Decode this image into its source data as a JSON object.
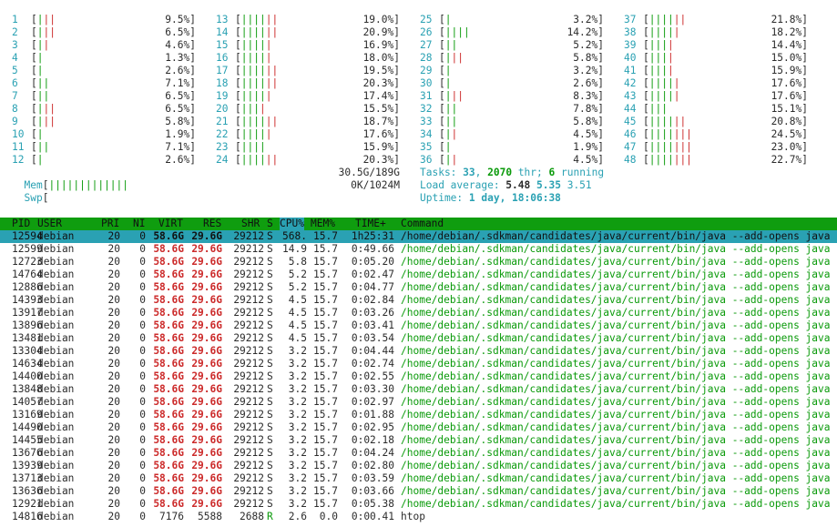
{
  "cpus": [
    {
      "id": "1",
      "pct": "9.5%",
      "g": 1,
      "r": 2
    },
    {
      "id": "2",
      "pct": "6.5%",
      "g": 1,
      "r": 2
    },
    {
      "id": "3",
      "pct": "4.6%",
      "g": 1,
      "r": 1
    },
    {
      "id": "4",
      "pct": "1.3%",
      "g": 1,
      "r": 0
    },
    {
      "id": "5",
      "pct": "2.6%",
      "g": 1,
      "r": 0
    },
    {
      "id": "6",
      "pct": "7.1%",
      "g": 2,
      "r": 0
    },
    {
      "id": "7",
      "pct": "6.5%",
      "g": 2,
      "r": 0
    },
    {
      "id": "8",
      "pct": "6.5%",
      "g": 1,
      "r": 2
    },
    {
      "id": "9",
      "pct": "5.8%",
      "g": 1,
      "r": 2
    },
    {
      "id": "10",
      "pct": "1.9%",
      "g": 1,
      "r": 0
    },
    {
      "id": "11",
      "pct": "7.1%",
      "g": 2,
      "r": 0
    },
    {
      "id": "12",
      "pct": "2.6%",
      "g": 1,
      "r": 0
    },
    {
      "id": "13",
      "pct": "19.0%",
      "g": 4,
      "r": 2
    },
    {
      "id": "14",
      "pct": "20.9%",
      "g": 4,
      "r": 2
    },
    {
      "id": "15",
      "pct": "16.9%",
      "g": 4,
      "r": 1
    },
    {
      "id": "16",
      "pct": "18.0%",
      "g": 4,
      "r": 1
    },
    {
      "id": "17",
      "pct": "19.5%",
      "g": 4,
      "r": 2
    },
    {
      "id": "18",
      "pct": "20.3%",
      "g": 4,
      "r": 2
    },
    {
      "id": "19",
      "pct": "17.4%",
      "g": 4,
      "r": 1
    },
    {
      "id": "20",
      "pct": "15.5%",
      "g": 3,
      "r": 1
    },
    {
      "id": "21",
      "pct": "18.7%",
      "g": 4,
      "r": 2
    },
    {
      "id": "22",
      "pct": "17.6%",
      "g": 4,
      "r": 1
    },
    {
      "id": "23",
      "pct": "15.9%",
      "g": 4,
      "r": 0
    },
    {
      "id": "24",
      "pct": "20.3%",
      "g": 4,
      "r": 2
    },
    {
      "id": "25",
      "pct": "3.2%",
      "g": 1,
      "r": 0
    },
    {
      "id": "26",
      "pct": "14.2%",
      "g": 4,
      "r": 0
    },
    {
      "id": "27",
      "pct": "5.2%",
      "g": 2,
      "r": 0
    },
    {
      "id": "28",
      "pct": "5.8%",
      "g": 1,
      "r": 2
    },
    {
      "id": "29",
      "pct": "3.2%",
      "g": 1,
      "r": 0
    },
    {
      "id": "30",
      "pct": "2.6%",
      "g": 1,
      "r": 0
    },
    {
      "id": "31",
      "pct": "8.3%",
      "g": 1,
      "r": 2
    },
    {
      "id": "32",
      "pct": "7.8%",
      "g": 2,
      "r": 0
    },
    {
      "id": "33",
      "pct": "5.8%",
      "g": 2,
      "r": 0
    },
    {
      "id": "34",
      "pct": "4.5%",
      "g": 1,
      "r": 1
    },
    {
      "id": "35",
      "pct": "1.9%",
      "g": 1,
      "r": 0
    },
    {
      "id": "36",
      "pct": "4.5%",
      "g": 1,
      "r": 1
    },
    {
      "id": "37",
      "pct": "21.8%",
      "g": 4,
      "r": 2
    },
    {
      "id": "38",
      "pct": "18.2%",
      "g": 4,
      "r": 1
    },
    {
      "id": "39",
      "pct": "14.4%",
      "g": 3,
      "r": 1
    },
    {
      "id": "40",
      "pct": "15.0%",
      "g": 3,
      "r": 1
    },
    {
      "id": "41",
      "pct": "15.9%",
      "g": 3,
      "r": 1
    },
    {
      "id": "42",
      "pct": "17.6%",
      "g": 4,
      "r": 1
    },
    {
      "id": "43",
      "pct": "17.6%",
      "g": 4,
      "r": 1
    },
    {
      "id": "44",
      "pct": "15.1%",
      "g": 3,
      "r": 0
    },
    {
      "id": "45",
      "pct": "20.8%",
      "g": 4,
      "r": 2
    },
    {
      "id": "46",
      "pct": "24.5%",
      "g": 4,
      "r": 3
    },
    {
      "id": "47",
      "pct": "23.0%",
      "g": 4,
      "r": 3
    },
    {
      "id": "48",
      "pct": "22.7%",
      "g": 4,
      "r": 3
    }
  ],
  "mem": {
    "label": "Mem",
    "value": "30.5G/189G",
    "bars": 13
  },
  "swp": {
    "label": "Swp",
    "value": "0K/1024M"
  },
  "tasks": {
    "label": "Tasks: ",
    "count": "33",
    "sep1": ", ",
    "thr": "2070",
    "sep2": " thr; ",
    "running": "6",
    "suffix": " running"
  },
  "load": {
    "label": "Load average: ",
    "v1": "5.48",
    "v2": "5.35",
    "v3": "3.51"
  },
  "uptime": {
    "label": "Uptime: ",
    "value": "1 day, 18:06:38"
  },
  "header": {
    "pid": "PID",
    "user": "USER",
    "pri": "PRI",
    "ni": "NI",
    "virt": "VIRT",
    "res": "RES",
    "shr": "SHR",
    "s": "S",
    "cpu": "CPU%",
    "mem": "MEM%",
    "time": "TIME+",
    "command": "Command"
  },
  "processes": [
    {
      "pid": "12594",
      "user": "debian",
      "pri": "20",
      "ni": "0",
      "virt": "58.6G",
      "res": "29.6G",
      "shr": "29212",
      "s": "S",
      "cpu": "568.",
      "mem": "15.7",
      "time": "1h25:31",
      "cmd": "/home/debian/.sdkman/candidates/java/current/bin/java --add-opens java"
    },
    {
      "pid": "12599",
      "user": "debian",
      "pri": "20",
      "ni": "0",
      "virt": "58.6G",
      "res": "29.6G",
      "shr": "29212",
      "s": "S",
      "cpu": "14.9",
      "mem": "15.7",
      "time": "0:49.66",
      "cmd": "/home/debian/.sdkman/candidates/java/current/bin/java --add-opens java"
    },
    {
      "pid": "12723",
      "user": "debian",
      "pri": "20",
      "ni": "0",
      "virt": "58.6G",
      "res": "29.6G",
      "shr": "29212",
      "s": "S",
      "cpu": "5.8",
      "mem": "15.7",
      "time": "0:05.20",
      "cmd": "/home/debian/.sdkman/candidates/java/current/bin/java --add-opens java"
    },
    {
      "pid": "14764",
      "user": "debian",
      "pri": "20",
      "ni": "0",
      "virt": "58.6G",
      "res": "29.6G",
      "shr": "29212",
      "s": "S",
      "cpu": "5.2",
      "mem": "15.7",
      "time": "0:02.47",
      "cmd": "/home/debian/.sdkman/candidates/java/current/bin/java --add-opens java"
    },
    {
      "pid": "12886",
      "user": "debian",
      "pri": "20",
      "ni": "0",
      "virt": "58.6G",
      "res": "29.6G",
      "shr": "29212",
      "s": "S",
      "cpu": "5.2",
      "mem": "15.7",
      "time": "0:04.77",
      "cmd": "/home/debian/.sdkman/candidates/java/current/bin/java --add-opens java"
    },
    {
      "pid": "14393",
      "user": "debian",
      "pri": "20",
      "ni": "0",
      "virt": "58.6G",
      "res": "29.6G",
      "shr": "29212",
      "s": "S",
      "cpu": "4.5",
      "mem": "15.7",
      "time": "0:02.84",
      "cmd": "/home/debian/.sdkman/candidates/java/current/bin/java --add-opens java"
    },
    {
      "pid": "13917",
      "user": "debian",
      "pri": "20",
      "ni": "0",
      "virt": "58.6G",
      "res": "29.6G",
      "shr": "29212",
      "s": "S",
      "cpu": "4.5",
      "mem": "15.7",
      "time": "0:03.26",
      "cmd": "/home/debian/.sdkman/candidates/java/current/bin/java --add-opens java"
    },
    {
      "pid": "13896",
      "user": "debian",
      "pri": "20",
      "ni": "0",
      "virt": "58.6G",
      "res": "29.6G",
      "shr": "29212",
      "s": "S",
      "cpu": "4.5",
      "mem": "15.7",
      "time": "0:03.41",
      "cmd": "/home/debian/.sdkman/candidates/java/current/bin/java --add-opens java"
    },
    {
      "pid": "13481",
      "user": "debian",
      "pri": "20",
      "ni": "0",
      "virt": "58.6G",
      "res": "29.6G",
      "shr": "29212",
      "s": "S",
      "cpu": "4.5",
      "mem": "15.7",
      "time": "0:03.54",
      "cmd": "/home/debian/.sdkman/candidates/java/current/bin/java --add-opens java"
    },
    {
      "pid": "13304",
      "user": "debian",
      "pri": "20",
      "ni": "0",
      "virt": "58.6G",
      "res": "29.6G",
      "shr": "29212",
      "s": "S",
      "cpu": "3.2",
      "mem": "15.7",
      "time": "0:04.44",
      "cmd": "/home/debian/.sdkman/candidates/java/current/bin/java --add-opens java"
    },
    {
      "pid": "14634",
      "user": "debian",
      "pri": "20",
      "ni": "0",
      "virt": "58.6G",
      "res": "29.6G",
      "shr": "29212",
      "s": "S",
      "cpu": "3.2",
      "mem": "15.7",
      "time": "0:02.74",
      "cmd": "/home/debian/.sdkman/candidates/java/current/bin/java --add-opens java"
    },
    {
      "pid": "14400",
      "user": "debian",
      "pri": "20",
      "ni": "0",
      "virt": "58.6G",
      "res": "29.6G",
      "shr": "29212",
      "s": "S",
      "cpu": "3.2",
      "mem": "15.7",
      "time": "0:02.55",
      "cmd": "/home/debian/.sdkman/candidates/java/current/bin/java --add-opens java"
    },
    {
      "pid": "13848",
      "user": "debian",
      "pri": "20",
      "ni": "0",
      "virt": "58.6G",
      "res": "29.6G",
      "shr": "29212",
      "s": "S",
      "cpu": "3.2",
      "mem": "15.7",
      "time": "0:03.30",
      "cmd": "/home/debian/.sdkman/candidates/java/current/bin/java --add-opens java"
    },
    {
      "pid": "14057",
      "user": "debian",
      "pri": "20",
      "ni": "0",
      "virt": "58.6G",
      "res": "29.6G",
      "shr": "29212",
      "s": "S",
      "cpu": "3.2",
      "mem": "15.7",
      "time": "0:02.97",
      "cmd": "/home/debian/.sdkman/candidates/java/current/bin/java --add-opens java"
    },
    {
      "pid": "13169",
      "user": "debian",
      "pri": "20",
      "ni": "0",
      "virt": "58.6G",
      "res": "29.6G",
      "shr": "29212",
      "s": "S",
      "cpu": "3.2",
      "mem": "15.7",
      "time": "0:01.88",
      "cmd": "/home/debian/.sdkman/candidates/java/current/bin/java --add-opens java"
    },
    {
      "pid": "14490",
      "user": "debian",
      "pri": "20",
      "ni": "0",
      "virt": "58.6G",
      "res": "29.6G",
      "shr": "29212",
      "s": "S",
      "cpu": "3.2",
      "mem": "15.7",
      "time": "0:02.95",
      "cmd": "/home/debian/.sdkman/candidates/java/current/bin/java --add-opens java"
    },
    {
      "pid": "14455",
      "user": "debian",
      "pri": "20",
      "ni": "0",
      "virt": "58.6G",
      "res": "29.6G",
      "shr": "29212",
      "s": "S",
      "cpu": "3.2",
      "mem": "15.7",
      "time": "0:02.18",
      "cmd": "/home/debian/.sdkman/candidates/java/current/bin/java --add-opens java"
    },
    {
      "pid": "13676",
      "user": "debian",
      "pri": "20",
      "ni": "0",
      "virt": "58.6G",
      "res": "29.6G",
      "shr": "29212",
      "s": "S",
      "cpu": "3.2",
      "mem": "15.7",
      "time": "0:04.24",
      "cmd": "/home/debian/.sdkman/candidates/java/current/bin/java --add-opens java"
    },
    {
      "pid": "13939",
      "user": "debian",
      "pri": "20",
      "ni": "0",
      "virt": "58.6G",
      "res": "29.6G",
      "shr": "29212",
      "s": "S",
      "cpu": "3.2",
      "mem": "15.7",
      "time": "0:02.80",
      "cmd": "/home/debian/.sdkman/candidates/java/current/bin/java --add-opens java"
    },
    {
      "pid": "13713",
      "user": "debian",
      "pri": "20",
      "ni": "0",
      "virt": "58.6G",
      "res": "29.6G",
      "shr": "29212",
      "s": "S",
      "cpu": "3.2",
      "mem": "15.7",
      "time": "0:03.59",
      "cmd": "/home/debian/.sdkman/candidates/java/current/bin/java --add-opens java"
    },
    {
      "pid": "13636",
      "user": "debian",
      "pri": "20",
      "ni": "0",
      "virt": "58.6G",
      "res": "29.6G",
      "shr": "29212",
      "s": "S",
      "cpu": "3.2",
      "mem": "15.7",
      "time": "0:03.66",
      "cmd": "/home/debian/.sdkman/candidates/java/current/bin/java --add-opens java"
    },
    {
      "pid": "12921",
      "user": "debian",
      "pri": "20",
      "ni": "0",
      "virt": "58.6G",
      "res": "29.6G",
      "shr": "29212",
      "s": "S",
      "cpu": "3.2",
      "mem": "15.7",
      "time": "0:05.38",
      "cmd": "/home/debian/.sdkman/candidates/java/current/bin/java --add-opens java"
    },
    {
      "pid": "14816",
      "user": "debian",
      "pri": "20",
      "ni": "0",
      "virt": "7176",
      "res": "5588",
      "shr": "2688",
      "s": "R",
      "cpu": "2.6",
      "mem": "0.0",
      "time": "0:00.41",
      "cmd": "htop"
    }
  ],
  "colors": {
    "cyan": "#2aa1b3",
    "green": "#0a9a0a",
    "red": "#cc2a2a",
    "header_bg": "#0f9d0f"
  }
}
